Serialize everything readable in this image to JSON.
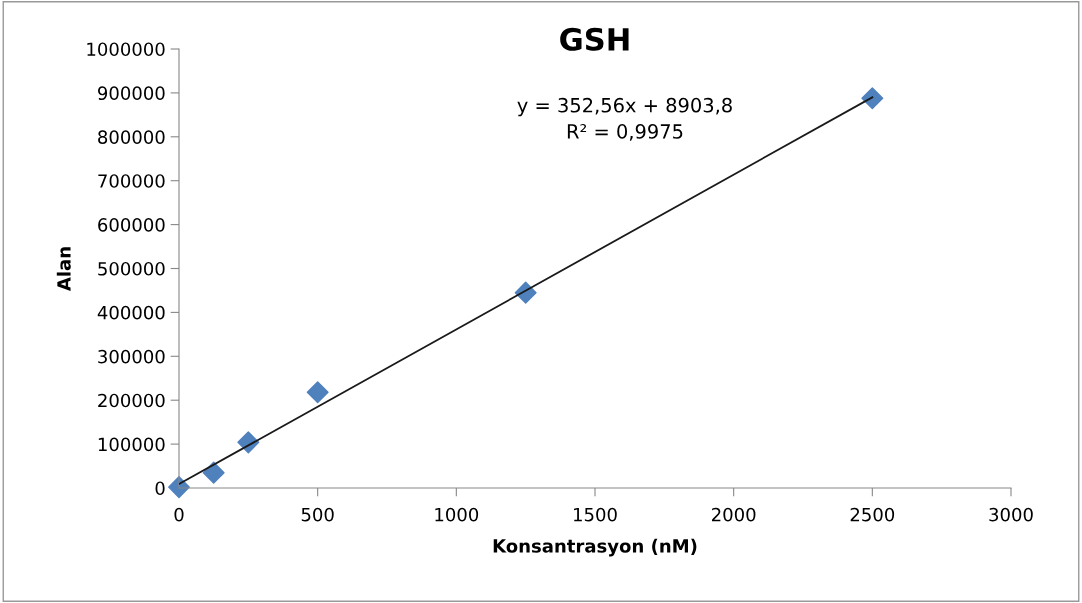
{
  "chart_data": {
    "type": "scatter",
    "title": "GSH",
    "xlabel": "Konsantrasyon (nM)",
    "ylabel": "Alan",
    "series": [
      {
        "color": "#4f81bd",
        "marker": "diamond",
        "x": [
          0,
          125,
          250,
          500,
          1250,
          2500
        ],
        "values": [
          2000,
          35000,
          104000,
          218000,
          445000,
          888000
        ]
      },
      {
        "type": "line",
        "color": "#1a1a1a",
        "marker": "none",
        "line_style": "solid",
        "x": [
          0,
          2500
        ],
        "values": [
          9000,
          890000
        ]
      }
    ],
    "annotations": [
      "y = 352,56x + 8903,8\nR² = 0,9975"
    ],
    "xlim": [
      0,
      3000
    ],
    "xticks": [
      0,
      500,
      1000,
      1500,
      2000,
      2500,
      3000
    ],
    "ylim": [
      0,
      1000000
    ],
    "yticks": [
      0,
      100000,
      200000,
      300000,
      400000,
      500000,
      600000,
      700000,
      800000,
      900000,
      1000000
    ],
    "grid": false,
    "legend": false
  }
}
